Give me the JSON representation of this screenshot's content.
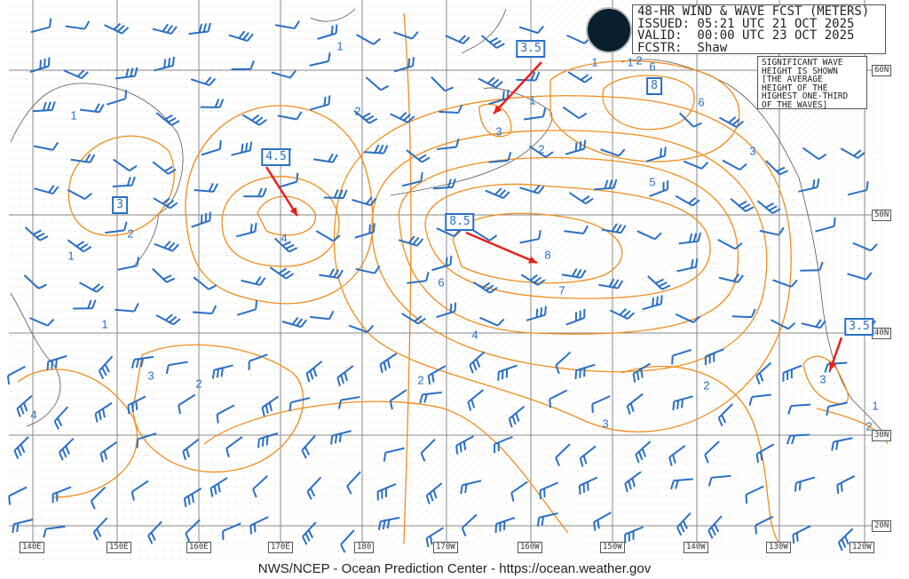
{
  "header": {
    "title": "48-HR WIND & WAVE FCST (METERS)",
    "issued": "ISSUED: 05:21 UTC 21 OCT 2025",
    "valid": "VALID:  00:00 UTC 23 OCT 2025",
    "forecaster": "FCSTR:  Shaw"
  },
  "note": "SIGNIFICANT WAVE\nHEIGHT IS SHOWN\n[THE AVERAGE\nHEIGHT OF THE\nHIGHEST ONE-THIRD\nOF THE WAVES]",
  "logo": "NOAA",
  "longitudes": [
    "140E",
    "150E",
    "160E",
    "170E",
    "180",
    "170W",
    "160W",
    "150W",
    "140W",
    "130W",
    "120W"
  ],
  "latitudes": [
    "60N",
    "50N",
    "40N",
    "30N",
    "20N"
  ],
  "contour_labels": [
    "1",
    "1",
    "2",
    "3",
    "1",
    "2",
    "1",
    "1",
    "2",
    "6",
    "6",
    "3",
    "5",
    "2",
    "1",
    "4",
    "6",
    "8",
    "7",
    "4",
    "1",
    "3",
    "2",
    "2",
    "2",
    "3",
    "4",
    "3",
    "1",
    "2"
  ],
  "max_boxes": [
    "3.5",
    "4.5",
    "3",
    "8.5",
    "8",
    "3.5"
  ],
  "colors": {
    "contour": "#f08c1e",
    "wind": "#2a6fc4",
    "arrow": "#e8201c",
    "grid": "#888888"
  },
  "footer": "NWS/NCEP - Ocean Prediction Center - https://ocean.weather.gov"
}
